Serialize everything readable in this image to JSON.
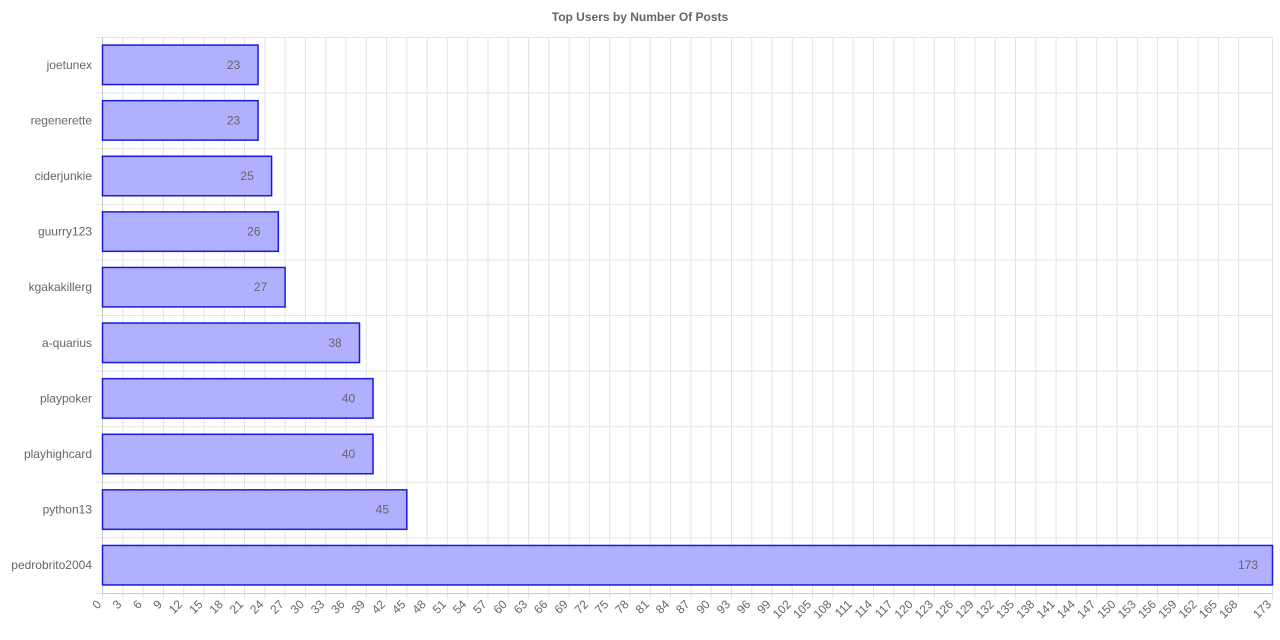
{
  "chart_data": {
    "type": "bar",
    "orientation": "horizontal",
    "title": "Top Users by Number Of Posts",
    "xlabel": "",
    "ylabel": "",
    "categories": [
      "joetunex",
      "regenerette",
      "ciderjunkie",
      "guurry123",
      "kgakakillerg",
      "a-quarius",
      "playpoker",
      "playhighcard",
      "python13",
      "pedrobrito2004"
    ],
    "values": [
      23,
      23,
      25,
      26,
      27,
      38,
      40,
      40,
      45,
      173
    ],
    "xlim": [
      0,
      173
    ],
    "x_ticks": [
      0,
      3,
      6,
      9,
      12,
      15,
      18,
      21,
      24,
      27,
      30,
      33,
      36,
      39,
      42,
      45,
      48,
      51,
      54,
      57,
      60,
      63,
      66,
      69,
      72,
      75,
      78,
      81,
      84,
      87,
      90,
      93,
      96,
      99,
      102,
      105,
      108,
      111,
      114,
      117,
      120,
      123,
      126,
      129,
      132,
      135,
      138,
      141,
      144,
      147,
      150,
      153,
      156,
      159,
      162,
      165,
      168,
      173
    ],
    "grid": true,
    "data_labels": true,
    "bar_fill": "#b0b0ff",
    "bar_stroke": "#1a1adb",
    "grid_color": "#e3e3e3",
    "text_color": "#666666"
  }
}
